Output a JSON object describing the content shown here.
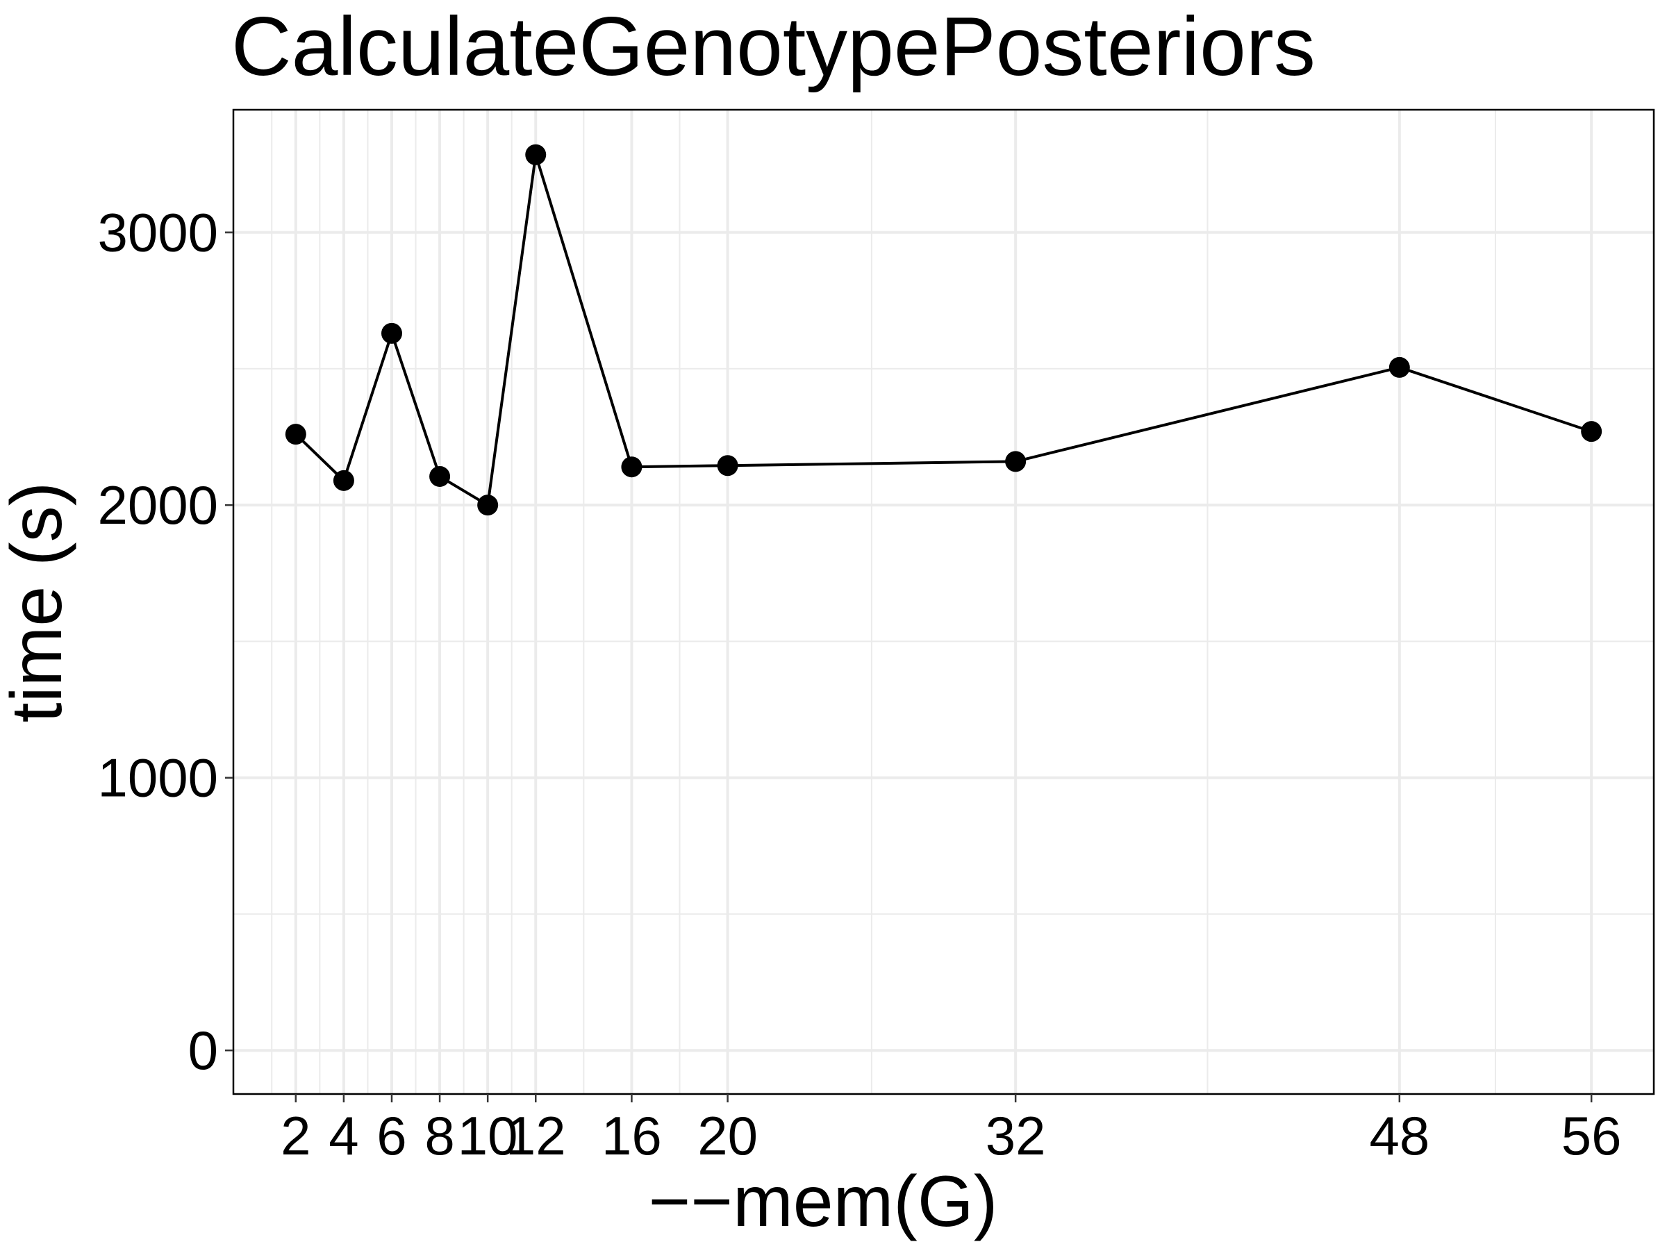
{
  "chart_data": {
    "type": "line",
    "title": "CalculateGenotypePosteriors",
    "xlabel": "−−mem(G)",
    "ylabel": "time (s)",
    "x_ticks": [
      2,
      4,
      6,
      8,
      10,
      12,
      16,
      20,
      32,
      48,
      56
    ],
    "x_tick_labels": [
      "2",
      "4",
      "6",
      "8",
      "10",
      "12",
      "16",
      "20",
      "32",
      "48",
      "56"
    ],
    "y_ticks": [
      0,
      1000,
      2000,
      3000
    ],
    "y_tick_labels": [
      "0",
      "1000",
      "2000",
      "3000"
    ],
    "xlim": [
      -0.6,
      58.6
    ],
    "ylim": [
      -160,
      3450
    ],
    "grid": true,
    "series": [
      {
        "x": [
          2,
          4,
          6,
          8,
          10,
          12,
          16,
          20,
          32,
          48,
          56
        ],
        "values": [
          2260,
          2090,
          2630,
          2105,
          2000,
          3285,
          2140,
          2145,
          2160,
          2505,
          2270
        ]
      }
    ],
    "colors": {
      "line": "#000000",
      "points": "#000000",
      "grid": "#ebebeb",
      "background": "#ffffff"
    }
  }
}
